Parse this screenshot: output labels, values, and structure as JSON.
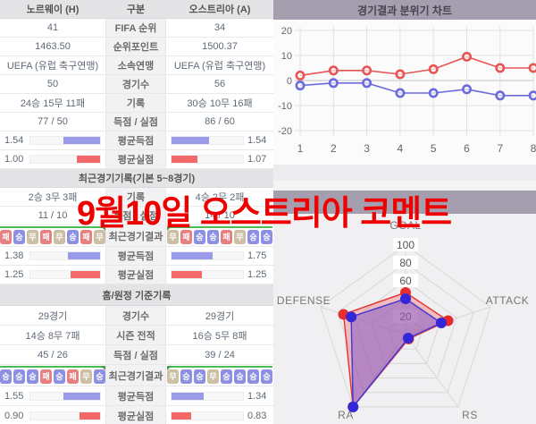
{
  "page": {
    "overlay_title": "9월10일 오스트리아 코멘트",
    "overlay_color": "#ee0000"
  },
  "colors": {
    "bar_blue": "#999be8",
    "bar_red": "#f3696a",
    "badge_win": "#8d90e2",
    "badge_draw": "#ccbfa6",
    "badge_loss": "#e87f80",
    "trend_green": "#4cbb52",
    "header_purple": "#a59eae"
  },
  "compare_table": {
    "header": {
      "home": "노르웨이 (H)",
      "divider": "구분",
      "away": "오스트리아 (A)"
    },
    "sections": [
      {
        "title": null,
        "rows": [
          {
            "type": "text",
            "label": "FIFA 순위",
            "home": "41",
            "away": "34"
          },
          {
            "type": "text",
            "label": "순위포인트",
            "home": "1463.50",
            "away": "1500.37"
          },
          {
            "type": "text",
            "label": "소속연맹",
            "home": "UEFA (유럽 축구연맹)",
            "away": "UEFA (유럽 축구연맹)"
          },
          {
            "type": "text",
            "label": "경기수",
            "home": "50",
            "away": "56"
          },
          {
            "type": "text",
            "label": "기록",
            "home": "24승 15무 11패",
            "away": "30승 10무 16패"
          },
          {
            "type": "text",
            "label": "득점 / 실점",
            "home": "77 / 50",
            "away": "86 / 60"
          },
          {
            "type": "bar",
            "label": "평균득점",
            "home": "1.54",
            "away": "1.54",
            "bar": "blue",
            "home_pct": 52,
            "away_pct": 52
          },
          {
            "type": "bar",
            "label": "평균실점",
            "home": "1.00",
            "away": "1.07",
            "bar": "red",
            "home_pct": 33,
            "away_pct": 36
          }
        ]
      },
      {
        "title": "최근경기기록(기본 5~8경기)",
        "rows": [
          {
            "type": "text",
            "label": "기록",
            "home": "2승 3무 3패",
            "away": "4승 2무 2패"
          },
          {
            "type": "text",
            "label": "득점 / 실점",
            "home": "11 / 10",
            "away": "14 / 10"
          },
          {
            "type": "badges",
            "label": "최근경기결과",
            "home": [
              "패",
              "승",
              "무",
              "패",
              "무",
              "승",
              "패",
              "무"
            ],
            "away": [
              "무",
              "패",
              "승",
              "승",
              "패",
              "무",
              "승",
              "승"
            ]
          },
          {
            "type": "bar",
            "label": "평균득점",
            "home": "1.38",
            "away": "1.75",
            "bar": "blue",
            "home_pct": 46,
            "away_pct": 58
          },
          {
            "type": "bar",
            "label": "평균실점",
            "home": "1.25",
            "away": "1.25",
            "bar": "red",
            "home_pct": 42,
            "away_pct": 42
          }
        ]
      },
      {
        "title": "홈/원정 기준기록",
        "rows": [
          {
            "type": "text",
            "label": "경기수",
            "home": "29경기",
            "away": "29경기"
          },
          {
            "type": "text",
            "label": "시즌 전적",
            "home": "14승 8무 7패",
            "away": "16승 5무 8패"
          },
          {
            "type": "text",
            "label": "득점 / 실점",
            "home": "45 / 26",
            "away": "39 / 24"
          },
          {
            "type": "badges",
            "label": "최근경기결과",
            "home": [
              "승",
              "승",
              "승",
              "패",
              "승",
              "패",
              "무",
              "승"
            ],
            "away": [
              "무",
              "승",
              "승",
              "무",
              "승",
              "승",
              "승",
              "승"
            ]
          },
          {
            "type": "bar",
            "label": "평균득점",
            "home": "1.55",
            "away": "1.34",
            "bar": "blue",
            "home_pct": 52,
            "away_pct": 45
          },
          {
            "type": "bar",
            "label": "평균실점",
            "home": "0.90",
            "away": "0.83",
            "bar": "red",
            "home_pct": 30,
            "away_pct": 28
          }
        ]
      }
    ]
  },
  "chart_data": [
    {
      "type": "line",
      "title": "경기결과 분위기 차트",
      "x": [
        1,
        2,
        3,
        4,
        5,
        6,
        7,
        8
      ],
      "series": [
        {
          "name": "home-mood",
          "color": "#e85555",
          "values": [
            2,
            4,
            4,
            2.5,
            4.5,
            9.5,
            5,
            5
          ]
        },
        {
          "name": "away-mood",
          "color": "#6b6bdc",
          "values": [
            -2,
            -1,
            -1,
            -5,
            -5,
            -3.5,
            -6,
            -6
          ]
        }
      ],
      "ylim": [
        -20,
        20
      ],
      "yticks": [
        20,
        10,
        0,
        -10,
        -20
      ],
      "xlabel": "",
      "ylabel": "",
      "grid": true,
      "legend_position": "none"
    },
    {
      "type": "radar",
      "axes": [
        "GOAL",
        "ATTACK",
        "RS",
        "RA",
        "DEFENSE"
      ],
      "rings": [
        20,
        40,
        60,
        80,
        100
      ],
      "ring_labels": [
        100,
        80,
        60,
        20
      ],
      "max": 100,
      "series": [
        {
          "name": "red-team",
          "color": "#e23b3b",
          "dot": "#e62e2e",
          "fill": "rgba(238,106,106,0.38)",
          "values": [
            47,
            50,
            6,
            100,
            73
          ]
        },
        {
          "name": "blue-team",
          "color": "#4a3bd0",
          "dot": "#3526d8",
          "fill": "rgba(110,72,200,0.45)",
          "values": [
            40,
            42,
            5,
            100,
            64
          ]
        }
      ]
    }
  ]
}
